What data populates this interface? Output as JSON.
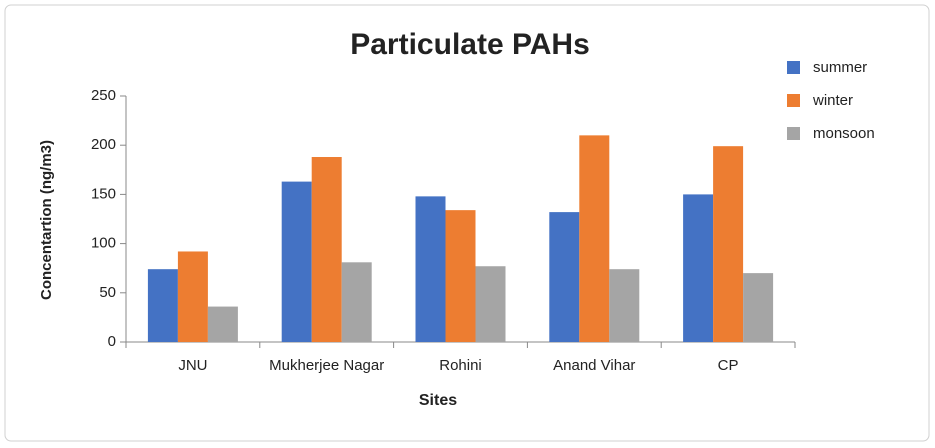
{
  "chart_data": {
    "type": "bar",
    "title": "Particulate PAHs",
    "x_label": "Sites",
    "y_label": "Concentartion (ng/m3)",
    "categories": [
      "JNU",
      "Mukherjee Nagar",
      "Rohini",
      "Anand Vihar",
      "CP"
    ],
    "series": [
      {
        "name": "summer",
        "color": "#4472c4",
        "values": [
          74,
          163,
          148,
          132,
          150
        ]
      },
      {
        "name": "winter",
        "color": "#ed7d31",
        "values": [
          92,
          188,
          134,
          210,
          199
        ]
      },
      {
        "name": "monsoon",
        "color": "#a5a5a5",
        "values": [
          36,
          81,
          77,
          74,
          70
        ]
      }
    ],
    "ylim": [
      0,
      250
    ],
    "yticks": [
      0,
      50,
      100,
      150,
      200,
      250
    ],
    "grid": false,
    "legend": "right"
  }
}
